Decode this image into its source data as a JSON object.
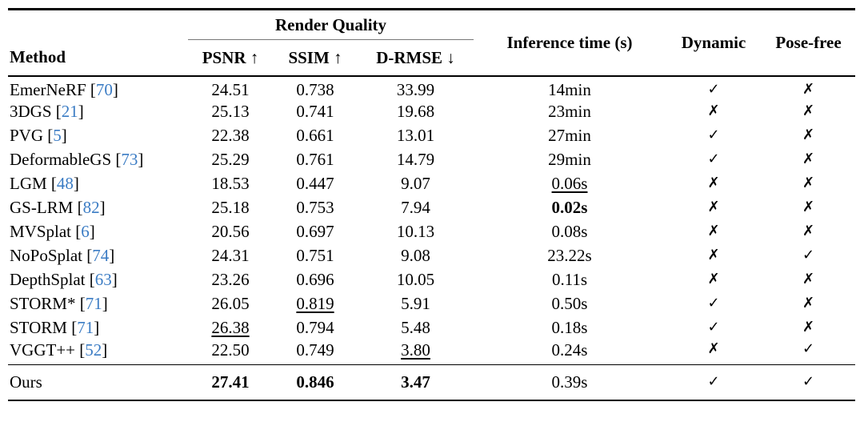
{
  "table": {
    "group_header": {
      "render_quality": "Render Quality"
    },
    "columns": {
      "method": "Method",
      "psnr": "PSNR ↑",
      "ssim": "SSIM ↑",
      "drmse": "D-RMSE ↓",
      "inference_time": "Inference time (s)",
      "dynamic": "Dynamic",
      "pose_free": "Pose-free"
    },
    "icons": {
      "check": "✓",
      "cross": "✗"
    },
    "colors": {
      "citation": "#3b7cc4",
      "text": "#000000"
    },
    "rows": [
      {
        "name": "EmerNeRF",
        "ref": "70",
        "psnr": "24.51",
        "psnr_style": "normal",
        "ssim": "0.738",
        "ssim_style": "normal",
        "drmse": "33.99",
        "drmse_style": "normal",
        "time": "14min",
        "time_style": "normal",
        "dynamic": true,
        "pose_free": false
      },
      {
        "name": "3DGS",
        "ref": "21",
        "psnr": "25.13",
        "psnr_style": "normal",
        "ssim": "0.741",
        "ssim_style": "normal",
        "drmse": "19.68",
        "drmse_style": "normal",
        "time": "23min",
        "time_style": "normal",
        "dynamic": false,
        "pose_free": false
      },
      {
        "name": "PVG",
        "ref": "5",
        "psnr": "22.38",
        "psnr_style": "normal",
        "ssim": "0.661",
        "ssim_style": "normal",
        "drmse": "13.01",
        "drmse_style": "normal",
        "time": "27min",
        "time_style": "normal",
        "dynamic": true,
        "pose_free": false
      },
      {
        "name": "DeformableGS",
        "ref": "73",
        "psnr": "25.29",
        "psnr_style": "normal",
        "ssim": "0.761",
        "ssim_style": "normal",
        "drmse": "14.79",
        "drmse_style": "normal",
        "time": "29min",
        "time_style": "normal",
        "dynamic": true,
        "pose_free": false
      },
      {
        "name": "LGM",
        "ref": "48",
        "psnr": "18.53",
        "psnr_style": "normal",
        "ssim": "0.447",
        "ssim_style": "normal",
        "drmse": "9.07",
        "drmse_style": "normal",
        "time": "0.06s",
        "time_style": "underline",
        "dynamic": false,
        "pose_free": false
      },
      {
        "name": "GS-LRM",
        "ref": "82",
        "psnr": "25.18",
        "psnr_style": "normal",
        "ssim": "0.753",
        "ssim_style": "normal",
        "drmse": "7.94",
        "drmse_style": "normal",
        "time": "0.02s",
        "time_style": "bold",
        "dynamic": false,
        "pose_free": false
      },
      {
        "name": "MVSplat",
        "ref": "6",
        "psnr": "20.56",
        "psnr_style": "normal",
        "ssim": "0.697",
        "ssim_style": "normal",
        "drmse": "10.13",
        "drmse_style": "normal",
        "time": "0.08s",
        "time_style": "normal",
        "dynamic": false,
        "pose_free": false
      },
      {
        "name": "NoPoSplat",
        "ref": "74",
        "psnr": "24.31",
        "psnr_style": "normal",
        "ssim": "0.751",
        "ssim_style": "normal",
        "drmse": "9.08",
        "drmse_style": "normal",
        "time": "23.22s",
        "time_style": "normal",
        "dynamic": false,
        "pose_free": true
      },
      {
        "name": "DepthSplat",
        "ref": "63",
        "psnr": "23.26",
        "psnr_style": "normal",
        "ssim": "0.696",
        "ssim_style": "normal",
        "drmse": "10.05",
        "drmse_style": "normal",
        "time": "0.11s",
        "time_style": "normal",
        "dynamic": false,
        "pose_free": false
      },
      {
        "name": "STORM*",
        "ref": "71",
        "psnr": "26.05",
        "psnr_style": "normal",
        "ssim": "0.819",
        "ssim_style": "underline",
        "drmse": "5.91",
        "drmse_style": "normal",
        "time": "0.50s",
        "time_style": "normal",
        "dynamic": true,
        "pose_free": false
      },
      {
        "name": "STORM",
        "ref": "71",
        "psnr": "26.38",
        "psnr_style": "underline",
        "ssim": "0.794",
        "ssim_style": "normal",
        "drmse": "5.48",
        "drmse_style": "normal",
        "time": "0.18s",
        "time_style": "normal",
        "dynamic": true,
        "pose_free": false
      },
      {
        "name": "VGGT++",
        "ref": "52",
        "psnr": "22.50",
        "psnr_style": "normal",
        "ssim": "0.749",
        "ssim_style": "normal",
        "drmse": "3.80",
        "drmse_style": "underline",
        "time": "0.24s",
        "time_style": "normal",
        "dynamic": false,
        "pose_free": true
      }
    ],
    "ours": {
      "name": "Ours",
      "ref": null,
      "psnr": "27.41",
      "psnr_style": "bold",
      "ssim": "0.846",
      "ssim_style": "bold",
      "drmse": "3.47",
      "drmse_style": "bold",
      "time": "0.39s",
      "time_style": "normal",
      "dynamic": true,
      "pose_free": true
    }
  }
}
